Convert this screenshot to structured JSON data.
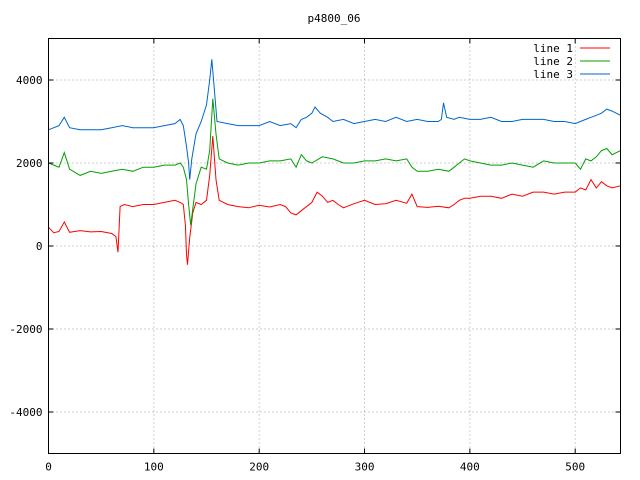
{
  "chart_data": {
    "type": "line",
    "title": "p4800_06",
    "xlabel": "",
    "ylabel": "",
    "xlim": [
      0,
      543
    ],
    "ylim": [
      -5000,
      5000
    ],
    "x_ticks": [
      0,
      100,
      200,
      300,
      400,
      500
    ],
    "y_ticks": [
      -4000,
      -2000,
      0,
      2000,
      4000
    ],
    "grid": true,
    "legend_position": "top-right",
    "series": [
      {
        "name": "line 1",
        "color": "#ff0000",
        "points": [
          [
            0,
            450
          ],
          [
            5,
            320
          ],
          [
            10,
            350
          ],
          [
            15,
            580
          ],
          [
            20,
            330
          ],
          [
            30,
            370
          ],
          [
            40,
            340
          ],
          [
            50,
            350
          ],
          [
            60,
            300
          ],
          [
            64,
            230
          ],
          [
            66,
            -150
          ],
          [
            68,
            950
          ],
          [
            72,
            1000
          ],
          [
            80,
            950
          ],
          [
            90,
            1000
          ],
          [
            100,
            1000
          ],
          [
            110,
            1050
          ],
          [
            120,
            1100
          ],
          [
            125,
            1050
          ],
          [
            128,
            1000
          ],
          [
            130,
            500
          ],
          [
            131,
            -200
          ],
          [
            132,
            -450
          ],
          [
            134,
            200
          ],
          [
            137,
            800
          ],
          [
            140,
            1050
          ],
          [
            145,
            1000
          ],
          [
            150,
            1100
          ],
          [
            153,
            1700
          ],
          [
            156,
            2650
          ],
          [
            159,
            1600
          ],
          [
            162,
            1100
          ],
          [
            170,
            1000
          ],
          [
            180,
            950
          ],
          [
            190,
            920
          ],
          [
            200,
            980
          ],
          [
            210,
            940
          ],
          [
            220,
            1000
          ],
          [
            225,
            950
          ],
          [
            230,
            800
          ],
          [
            235,
            750
          ],
          [
            240,
            850
          ],
          [
            250,
            1050
          ],
          [
            255,
            1300
          ],
          [
            260,
            1200
          ],
          [
            265,
            1050
          ],
          [
            270,
            1100
          ],
          [
            275,
            1000
          ],
          [
            280,
            920
          ],
          [
            290,
            1020
          ],
          [
            300,
            1100
          ],
          [
            310,
            1000
          ],
          [
            320,
            1020
          ],
          [
            330,
            1100
          ],
          [
            340,
            1030
          ],
          [
            345,
            1250
          ],
          [
            350,
            950
          ],
          [
            360,
            930
          ],
          [
            370,
            960
          ],
          [
            380,
            920
          ],
          [
            385,
            1000
          ],
          [
            390,
            1100
          ],
          [
            395,
            1150
          ],
          [
            400,
            1150
          ],
          [
            410,
            1200
          ],
          [
            420,
            1200
          ],
          [
            430,
            1150
          ],
          [
            440,
            1250
          ],
          [
            450,
            1200
          ],
          [
            460,
            1300
          ],
          [
            470,
            1300
          ],
          [
            480,
            1250
          ],
          [
            490,
            1300
          ],
          [
            500,
            1300
          ],
          [
            505,
            1400
          ],
          [
            510,
            1350
          ],
          [
            515,
            1600
          ],
          [
            520,
            1400
          ],
          [
            525,
            1550
          ],
          [
            530,
            1450
          ],
          [
            535,
            1400
          ],
          [
            543,
            1450
          ]
        ]
      },
      {
        "name": "line 2",
        "color": "#00a000",
        "points": [
          [
            0,
            2000
          ],
          [
            5,
            1950
          ],
          [
            10,
            1900
          ],
          [
            15,
            2250
          ],
          [
            20,
            1850
          ],
          [
            30,
            1700
          ],
          [
            40,
            1800
          ],
          [
            50,
            1750
          ],
          [
            60,
            1800
          ],
          [
            70,
            1850
          ],
          [
            80,
            1800
          ],
          [
            90,
            1900
          ],
          [
            100,
            1900
          ],
          [
            110,
            1950
          ],
          [
            120,
            1950
          ],
          [
            125,
            2000
          ],
          [
            128,
            1900
          ],
          [
            131,
            1600
          ],
          [
            133,
            1000
          ],
          [
            135,
            500
          ],
          [
            137,
            900
          ],
          [
            140,
            1500
          ],
          [
            145,
            1900
          ],
          [
            150,
            1850
          ],
          [
            153,
            2300
          ],
          [
            156,
            3550
          ],
          [
            159,
            2700
          ],
          [
            162,
            2100
          ],
          [
            170,
            2000
          ],
          [
            180,
            1950
          ],
          [
            190,
            2000
          ],
          [
            200,
            2000
          ],
          [
            210,
            2050
          ],
          [
            220,
            2050
          ],
          [
            230,
            2100
          ],
          [
            235,
            1900
          ],
          [
            240,
            2200
          ],
          [
            245,
            2050
          ],
          [
            250,
            2000
          ],
          [
            260,
            2150
          ],
          [
            270,
            2100
          ],
          [
            280,
            2000
          ],
          [
            290,
            2000
          ],
          [
            300,
            2050
          ],
          [
            310,
            2050
          ],
          [
            320,
            2100
          ],
          [
            330,
            2050
          ],
          [
            340,
            2100
          ],
          [
            345,
            1900
          ],
          [
            350,
            1800
          ],
          [
            360,
            1800
          ],
          [
            370,
            1850
          ],
          [
            380,
            1800
          ],
          [
            385,
            1900
          ],
          [
            390,
            2000
          ],
          [
            395,
            2100
          ],
          [
            400,
            2050
          ],
          [
            410,
            2000
          ],
          [
            420,
            1950
          ],
          [
            430,
            1950
          ],
          [
            440,
            2000
          ],
          [
            450,
            1950
          ],
          [
            460,
            1900
          ],
          [
            470,
            2050
          ],
          [
            480,
            2000
          ],
          [
            490,
            2000
          ],
          [
            500,
            2000
          ],
          [
            505,
            1850
          ],
          [
            510,
            2100
          ],
          [
            515,
            2050
          ],
          [
            520,
            2150
          ],
          [
            525,
            2300
          ],
          [
            530,
            2350
          ],
          [
            535,
            2200
          ],
          [
            543,
            2300
          ]
        ]
      },
      {
        "name": "line 3",
        "color": "#0066cc",
        "points": [
          [
            0,
            2800
          ],
          [
            5,
            2850
          ],
          [
            10,
            2900
          ],
          [
            15,
            3100
          ],
          [
            20,
            2850
          ],
          [
            30,
            2800
          ],
          [
            40,
            2800
          ],
          [
            50,
            2800
          ],
          [
            60,
            2850
          ],
          [
            70,
            2900
          ],
          [
            80,
            2850
          ],
          [
            90,
            2850
          ],
          [
            100,
            2850
          ],
          [
            110,
            2900
          ],
          [
            120,
            2950
          ],
          [
            125,
            3050
          ],
          [
            128,
            2900
          ],
          [
            131,
            2400
          ],
          [
            133,
            2000
          ],
          [
            134,
            1600
          ],
          [
            136,
            2100
          ],
          [
            140,
            2700
          ],
          [
            145,
            3000
          ],
          [
            150,
            3400
          ],
          [
            153,
            4000
          ],
          [
            155,
            4500
          ],
          [
            157,
            3900
          ],
          [
            160,
            3000
          ],
          [
            170,
            2950
          ],
          [
            180,
            2900
          ],
          [
            190,
            2900
          ],
          [
            200,
            2900
          ],
          [
            210,
            3000
          ],
          [
            220,
            2900
          ],
          [
            230,
            2950
          ],
          [
            235,
            2850
          ],
          [
            240,
            3050
          ],
          [
            245,
            3100
          ],
          [
            250,
            3200
          ],
          [
            253,
            3350
          ],
          [
            258,
            3200
          ],
          [
            265,
            3100
          ],
          [
            270,
            3000
          ],
          [
            280,
            3050
          ],
          [
            290,
            2950
          ],
          [
            300,
            3000
          ],
          [
            310,
            3050
          ],
          [
            320,
            3000
          ],
          [
            330,
            3100
          ],
          [
            340,
            3000
          ],
          [
            350,
            3050
          ],
          [
            360,
            3000
          ],
          [
            370,
            3000
          ],
          [
            373,
            3050
          ],
          [
            375,
            3450
          ],
          [
            378,
            3100
          ],
          [
            385,
            3050
          ],
          [
            390,
            3100
          ],
          [
            400,
            3050
          ],
          [
            410,
            3050
          ],
          [
            420,
            3100
          ],
          [
            430,
            3000
          ],
          [
            440,
            3000
          ],
          [
            450,
            3050
          ],
          [
            460,
            3050
          ],
          [
            470,
            3050
          ],
          [
            480,
            3000
          ],
          [
            490,
            3000
          ],
          [
            500,
            2950
          ],
          [
            510,
            3050
          ],
          [
            515,
            3100
          ],
          [
            520,
            3150
          ],
          [
            525,
            3200
          ],
          [
            530,
            3300
          ],
          [
            535,
            3250
          ],
          [
            543,
            3150
          ]
        ]
      }
    ]
  }
}
